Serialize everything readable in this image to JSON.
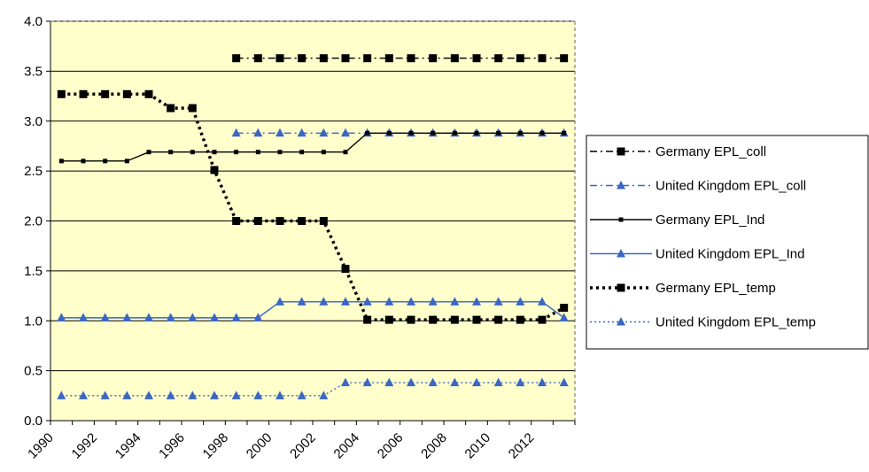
{
  "chart_data": {
    "type": "line",
    "title": "",
    "xlabel": "",
    "ylabel": "",
    "ylim": [
      0,
      4
    ],
    "yticks": [
      "0.0",
      "0.5",
      "1.0",
      "1.5",
      "2.0",
      "2.5",
      "3.0",
      "3.5",
      "4.0"
    ],
    "xlim": [
      1990,
      2014
    ],
    "xticks": [
      "1990",
      "1992",
      "1994",
      "1996",
      "1998",
      "2000",
      "2002",
      "2004",
      "2006",
      "2008",
      "2010",
      "2012"
    ],
    "grid": "horizontal",
    "plot_background": "#FFFFCC",
    "legend_placement": "right",
    "x": [
      1990.5,
      1991.5,
      1992.5,
      1993.5,
      1994.5,
      1995.5,
      1996.5,
      1997.5,
      1998.5,
      1999.5,
      2000.5,
      2001.5,
      2002.5,
      2003.5,
      2004.5,
      2005.5,
      2006.5,
      2007.5,
      2008.5,
      2009.5,
      2010.5,
      2011.5,
      2012.5,
      2013.5
    ],
    "series": [
      {
        "name": "Germany EPL_coll",
        "color": "#000000",
        "line_style": "dash-dot",
        "marker": "square",
        "values": [
          null,
          null,
          null,
          null,
          null,
          null,
          null,
          null,
          3.63,
          3.63,
          3.63,
          3.63,
          3.63,
          3.63,
          3.63,
          3.63,
          3.63,
          3.63,
          3.63,
          3.63,
          3.63,
          3.63,
          3.63,
          3.63
        ]
      },
      {
        "name": "United Kingdom EPL_coll",
        "color": "#3A66C4",
        "line_style": "dash-dot",
        "marker": "triangle",
        "values": [
          null,
          null,
          null,
          null,
          null,
          null,
          null,
          null,
          2.88,
          2.88,
          2.88,
          2.88,
          2.88,
          2.88,
          2.88,
          2.88,
          2.88,
          2.88,
          2.88,
          2.88,
          2.88,
          2.88,
          2.88,
          2.88
        ]
      },
      {
        "name": "Germany EPL_Ind",
        "color": "#000000",
        "line_style": "solid",
        "marker": "small-square",
        "values": [
          2.6,
          2.6,
          2.6,
          2.6,
          2.69,
          2.69,
          2.69,
          2.69,
          2.69,
          2.69,
          2.69,
          2.69,
          2.69,
          2.69,
          2.88,
          2.88,
          2.88,
          2.88,
          2.88,
          2.88,
          2.88,
          2.88,
          2.88,
          2.88
        ]
      },
      {
        "name": "United Kingdom EPL_Ind",
        "color": "#3A66C4",
        "line_style": "solid",
        "marker": "triangle",
        "values": [
          1.03,
          1.03,
          1.03,
          1.03,
          1.03,
          1.03,
          1.03,
          1.03,
          1.03,
          1.03,
          1.19,
          1.19,
          1.19,
          1.19,
          1.19,
          1.19,
          1.19,
          1.19,
          1.19,
          1.19,
          1.19,
          1.19,
          1.19,
          1.03
        ]
      },
      {
        "name": "Germany EPL_temp",
        "color": "#000000",
        "line_style": "bold-dotted",
        "marker": "square",
        "values": [
          3.27,
          3.27,
          3.27,
          3.27,
          3.27,
          3.13,
          3.13,
          2.51,
          2.0,
          2.0,
          2.0,
          2.0,
          2.0,
          1.52,
          1.01,
          1.01,
          1.01,
          1.01,
          1.01,
          1.01,
          1.01,
          1.01,
          1.01,
          1.13
        ]
      },
      {
        "name": "United Kingdom EPL_temp",
        "color": "#3A66C4",
        "line_style": "dotted",
        "marker": "triangle",
        "values": [
          0.25,
          0.25,
          0.25,
          0.25,
          0.25,
          0.25,
          0.25,
          0.25,
          0.25,
          0.25,
          0.25,
          0.25,
          0.25,
          0.38,
          0.38,
          0.38,
          0.38,
          0.38,
          0.38,
          0.38,
          0.38,
          0.38,
          0.38,
          0.38
        ]
      }
    ]
  }
}
